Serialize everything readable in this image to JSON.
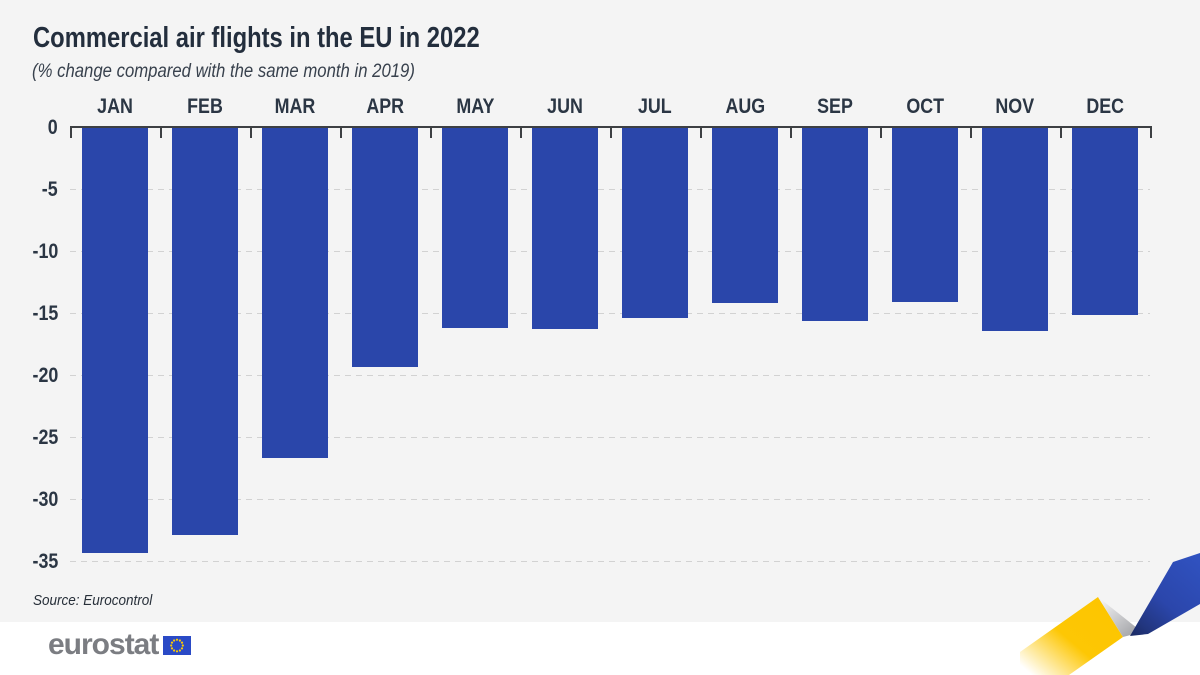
{
  "header": {
    "title": "Commercial air flights in the EU in 2022",
    "subtitle": "(% change compared with the same month in 2019)"
  },
  "chart_data": {
    "type": "bar",
    "title": "Commercial air flights in the EU in 2022",
    "subtitle": "(% change compared with the same month in 2019)",
    "categories": [
      "JAN",
      "FEB",
      "MAR",
      "APR",
      "MAY",
      "JUN",
      "JUL",
      "AUG",
      "SEP",
      "OCT",
      "NOV",
      "DEC"
    ],
    "values": [
      -34.3,
      -32.8,
      -26.6,
      -19.3,
      -16.1,
      -16.2,
      -15.3,
      -14.1,
      -15.6,
      -14.0,
      -16.4,
      -15.1
    ],
    "xlabel": "",
    "ylabel": "",
    "ylim": [
      -35,
      0
    ],
    "yticks": [
      0,
      -5,
      -10,
      -15,
      -20,
      -25,
      -30,
      -35
    ],
    "grid": "horizontal-dashed",
    "legend": "none",
    "bar_color": "#2a46aa"
  },
  "source": {
    "label": "Source: Eurocontrol"
  },
  "footer": {
    "logo_text": "eurostat"
  },
  "colors": {
    "background": "#f4f4f4",
    "footer_background": "#ffffff",
    "bar": "#2a46aa",
    "axis": "#3d4043",
    "gridline": "#d2d2d2",
    "title_text": "#232e3d",
    "label_text": "#2b3644",
    "logo_gray": "#7b7d82",
    "eu_flag_blue": "#2a4ac6",
    "eu_star_yellow": "#ffcc00",
    "ribbon_yellow": "#fdc500",
    "ribbon_blue": "#2b46ab"
  }
}
